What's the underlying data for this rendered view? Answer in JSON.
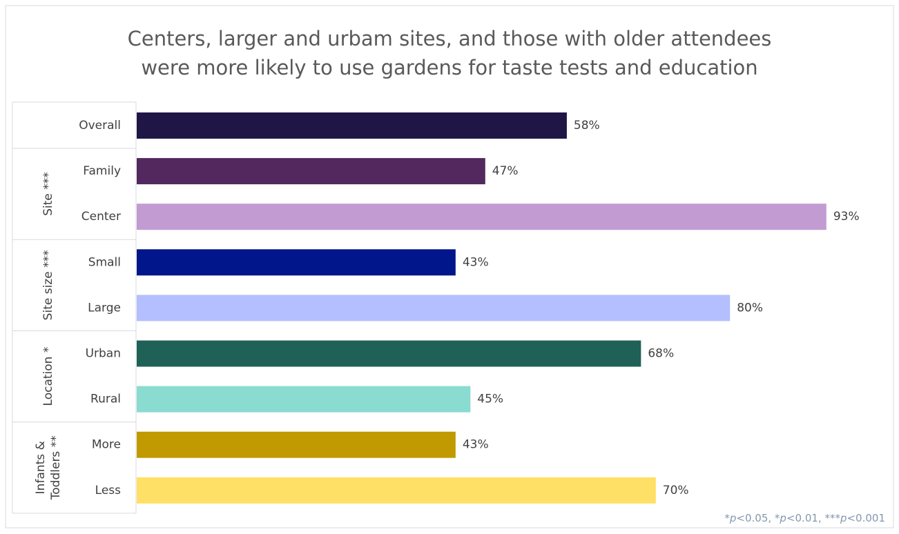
{
  "chart_data": {
    "type": "bar",
    "title": [
      "Centers, larger and urbam sites, and those with older attendees",
      "were more likely to use gardens for taste tests and education"
    ],
    "groups": [
      {
        "categories": [
          "Overall"
        ],
        "values": [
          58
        ],
        "value_labels": [
          "58%"
        ],
        "colors": [
          "#1f1646"
        ]
      },
      {
        "name": [
          "Site ***"
        ],
        "categories": [
          "Family",
          "Center"
        ],
        "values": [
          47,
          93
        ],
        "value_labels": [
          "47%",
          "93%"
        ],
        "colors": [
          "#52285e",
          "#c39bd3"
        ]
      },
      {
        "name": [
          "Site size ***"
        ],
        "categories": [
          "Small",
          "Large"
        ],
        "values": [
          43,
          80
        ],
        "value_labels": [
          "43%",
          "80%"
        ],
        "colors": [
          "#00168a",
          "#b4bfff"
        ]
      },
      {
        "name": [
          "Location *"
        ],
        "categories": [
          "Urban",
          "Rural"
        ],
        "values": [
          68,
          45
        ],
        "value_labels": [
          "68%",
          "45%"
        ],
        "colors": [
          "#1f6157",
          "#8adbd0"
        ]
      },
      {
        "name": [
          "Infants &",
          "Toddlers **"
        ],
        "categories": [
          "More",
          "Less"
        ],
        "values": [
          43,
          70
        ],
        "value_labels": [
          "43%",
          "70%"
        ],
        "colors": [
          "#c09a00",
          "#ffe066"
        ]
      }
    ],
    "footnote": [
      "*",
      "p",
      "<0.05, *",
      "p",
      "<0.01, ***",
      "p",
      "<0.001"
    ]
  }
}
